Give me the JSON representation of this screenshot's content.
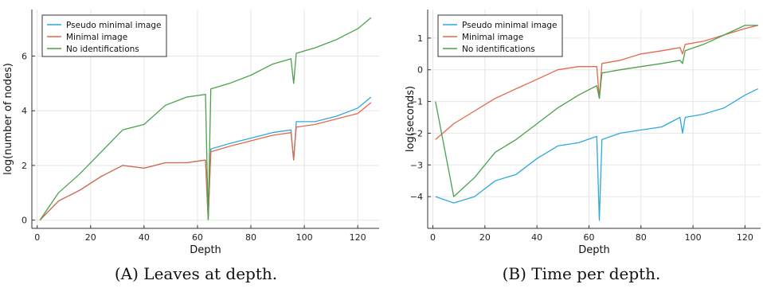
{
  "chart_data": [
    {
      "type": "line",
      "xlabel": "Depth",
      "ylabel": "log(number of nodes)",
      "xlim": [
        -2,
        128
      ],
      "ylim": [
        -0.3,
        7.7
      ],
      "xticks": [
        0,
        20,
        40,
        60,
        80,
        100,
        120
      ],
      "yticks": [
        0,
        2,
        4,
        6
      ],
      "grid": true,
      "legend_position": "top-left",
      "caption_label": "(A)",
      "caption_text": "Leaves at depth.",
      "series": [
        {
          "name": "Pseudo minimal image",
          "color": "#2ea8e0",
          "x": [
            1,
            8,
            16,
            24,
            32,
            40,
            48,
            56,
            63,
            64,
            65,
            72,
            80,
            88,
            95,
            96,
            97,
            104,
            112,
            120,
            125
          ],
          "y": [
            0,
            0.7,
            1.1,
            1.6,
            2.0,
            1.9,
            2.1,
            2.1,
            2.2,
            0.02,
            2.6,
            2.8,
            3.0,
            3.2,
            3.3,
            2.2,
            3.6,
            3.6,
            3.8,
            4.1,
            4.5
          ]
        },
        {
          "name": "Minimal image",
          "color": "#e2694a",
          "x": [
            1,
            8,
            16,
            24,
            32,
            40,
            48,
            56,
            63,
            64,
            65,
            72,
            80,
            88,
            95,
            96,
            97,
            104,
            112,
            120,
            125
          ],
          "y": [
            0,
            0.7,
            1.1,
            1.6,
            2.0,
            1.9,
            2.1,
            2.1,
            2.2,
            0.02,
            2.5,
            2.7,
            2.9,
            3.1,
            3.2,
            2.2,
            3.4,
            3.5,
            3.7,
            3.9,
            4.3
          ]
        },
        {
          "name": "No identifications",
          "color": "#4aa14d",
          "x": [
            1,
            8,
            16,
            24,
            32,
            40,
            48,
            56,
            63,
            64,
            65,
            72,
            80,
            88,
            95,
            96,
            97,
            104,
            112,
            120,
            125
          ],
          "y": [
            0,
            1.0,
            1.7,
            2.5,
            3.3,
            3.5,
            4.2,
            4.5,
            4.6,
            0.02,
            4.8,
            5.0,
            5.3,
            5.7,
            5.9,
            5.0,
            6.1,
            6.3,
            6.6,
            7.0,
            7.4
          ]
        }
      ]
    },
    {
      "type": "line",
      "xlabel": "Depth",
      "ylabel": "log(seconds)",
      "xlim": [
        -2,
        126
      ],
      "ylim": [
        -5.0,
        1.9
      ],
      "xticks": [
        0,
        20,
        40,
        60,
        80,
        100,
        120
      ],
      "yticks": [
        -4,
        -3,
        -2,
        -1,
        0,
        1
      ],
      "grid": true,
      "legend_position": "top-left",
      "caption_label": "(B)",
      "caption_text": "Time per depth.",
      "series": [
        {
          "name": "Pseudo minimal image",
          "color": "#2ea8e0",
          "x": [
            1,
            8,
            16,
            24,
            32,
            40,
            48,
            56,
            63,
            64,
            65,
            72,
            80,
            88,
            95,
            96,
            97,
            104,
            112,
            120,
            125
          ],
          "y": [
            -4.0,
            -4.2,
            -4.0,
            -3.5,
            -3.3,
            -2.8,
            -2.4,
            -2.3,
            -2.1,
            -4.75,
            -2.2,
            -2.0,
            -1.9,
            -1.8,
            -1.5,
            -2.0,
            -1.5,
            -1.4,
            -1.2,
            -0.8,
            -0.6
          ]
        },
        {
          "name": "Minimal image",
          "color": "#e2694a",
          "x": [
            1,
            8,
            16,
            24,
            32,
            40,
            48,
            56,
            63,
            64,
            65,
            72,
            80,
            88,
            95,
            96,
            97,
            104,
            112,
            120,
            125
          ],
          "y": [
            -2.2,
            -1.7,
            -1.3,
            -0.9,
            -0.6,
            -0.3,
            0.0,
            0.1,
            0.1,
            -0.9,
            0.2,
            0.3,
            0.5,
            0.6,
            0.7,
            0.5,
            0.8,
            0.9,
            1.1,
            1.3,
            1.4
          ]
        },
        {
          "name": "No identifications",
          "color": "#4aa14d",
          "x": [
            1,
            8,
            16,
            24,
            32,
            40,
            48,
            56,
            63,
            64,
            65,
            72,
            80,
            88,
            95,
            96,
            97,
            104,
            112,
            120,
            125
          ],
          "y": [
            -1.0,
            -4.0,
            -3.4,
            -2.6,
            -2.2,
            -1.7,
            -1.2,
            -0.8,
            -0.5,
            -0.9,
            -0.1,
            0.0,
            0.1,
            0.2,
            0.3,
            0.2,
            0.6,
            0.8,
            1.1,
            1.4,
            1.4
          ]
        }
      ]
    }
  ]
}
